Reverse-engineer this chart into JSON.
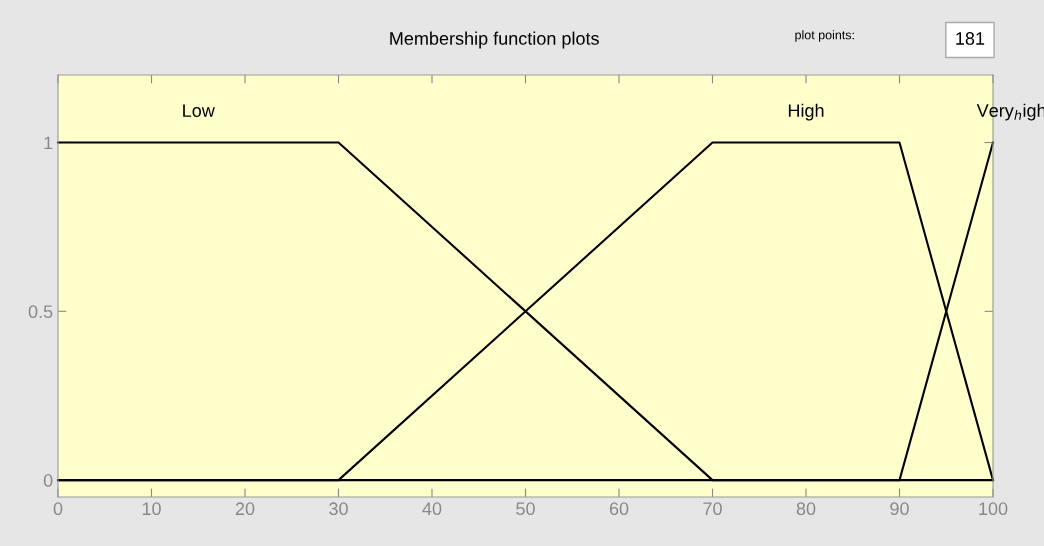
{
  "chart_data": {
    "type": "line",
    "title": "Membership function plots",
    "series": [
      {
        "name": "Low",
        "color": "#000000",
        "x": [
          0,
          30,
          70,
          100
        ],
        "values": [
          1,
          1,
          0,
          0
        ]
      },
      {
        "name": "High",
        "color": "#000000",
        "x": [
          0,
          30,
          70,
          90,
          100
        ],
        "values": [
          0,
          0,
          1,
          1,
          0
        ]
      },
      {
        "name": "Very$_{h}$igh",
        "color": "#000000",
        "x": [
          0,
          90,
          100
        ],
        "values": [
          0,
          0,
          1
        ]
      }
    ],
    "xlim": [
      0,
      100
    ],
    "xticks": [
      0,
      10,
      20,
      30,
      40,
      50,
      60,
      70,
      80,
      90,
      100
    ],
    "ylim": [
      -0.05,
      1.2
    ],
    "yticks": [
      0,
      0.5,
      1
    ],
    "grid": false,
    "legend": false,
    "marker": "none",
    "line_style": "solid",
    "annotations": [
      "plot points:",
      "181"
    ]
  }
}
